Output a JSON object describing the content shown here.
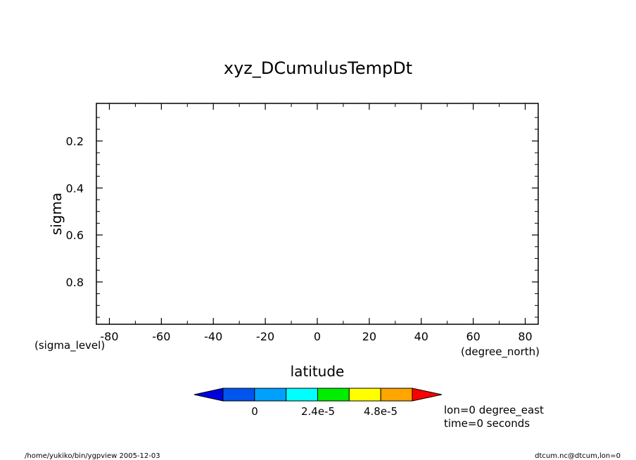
{
  "chart_data": {
    "type": "heatmap",
    "title": "xyz_DCumulusTempDt",
    "xlabel": "latitude",
    "ylabel": "sigma",
    "x_unit": "(degree_north)",
    "y_unit": "(sigma_level)",
    "xlim": [
      -85,
      85
    ],
    "ylim": [
      0.98,
      0.04
    ],
    "x_ticks": [
      -80,
      -60,
      -40,
      -20,
      0,
      20,
      40,
      60,
      80
    ],
    "x_tick_labels": [
      "-80",
      "-60",
      "-40",
      "-20",
      "0",
      "20",
      "40",
      "60",
      "80"
    ],
    "y_ticks": [
      0.2,
      0.4,
      0.6,
      0.8
    ],
    "y_tick_labels": [
      "0.2",
      "0.4",
      "0.6",
      "0.8"
    ],
    "grid": false,
    "data": [],
    "colorbar": {
      "colors": [
        "#0000dd",
        "#0055ee",
        "#00a0ff",
        "#00ffff",
        "#00ee00",
        "#ffff00",
        "#ffa500",
        "#ff0000"
      ],
      "tick_labels": [
        "0",
        "2.4e-5",
        "4.8e-5"
      ],
      "tick_values": [
        0,
        2.4e-05,
        4.8e-05
      ]
    },
    "annotations": [
      "lon=0 degree_east",
      "time=0 seconds"
    ]
  },
  "footer": {
    "left": "/home/yukiko/bin/ygpview  2005-12-03",
    "right": "dtcum.nc@dtcum,lon=0"
  }
}
